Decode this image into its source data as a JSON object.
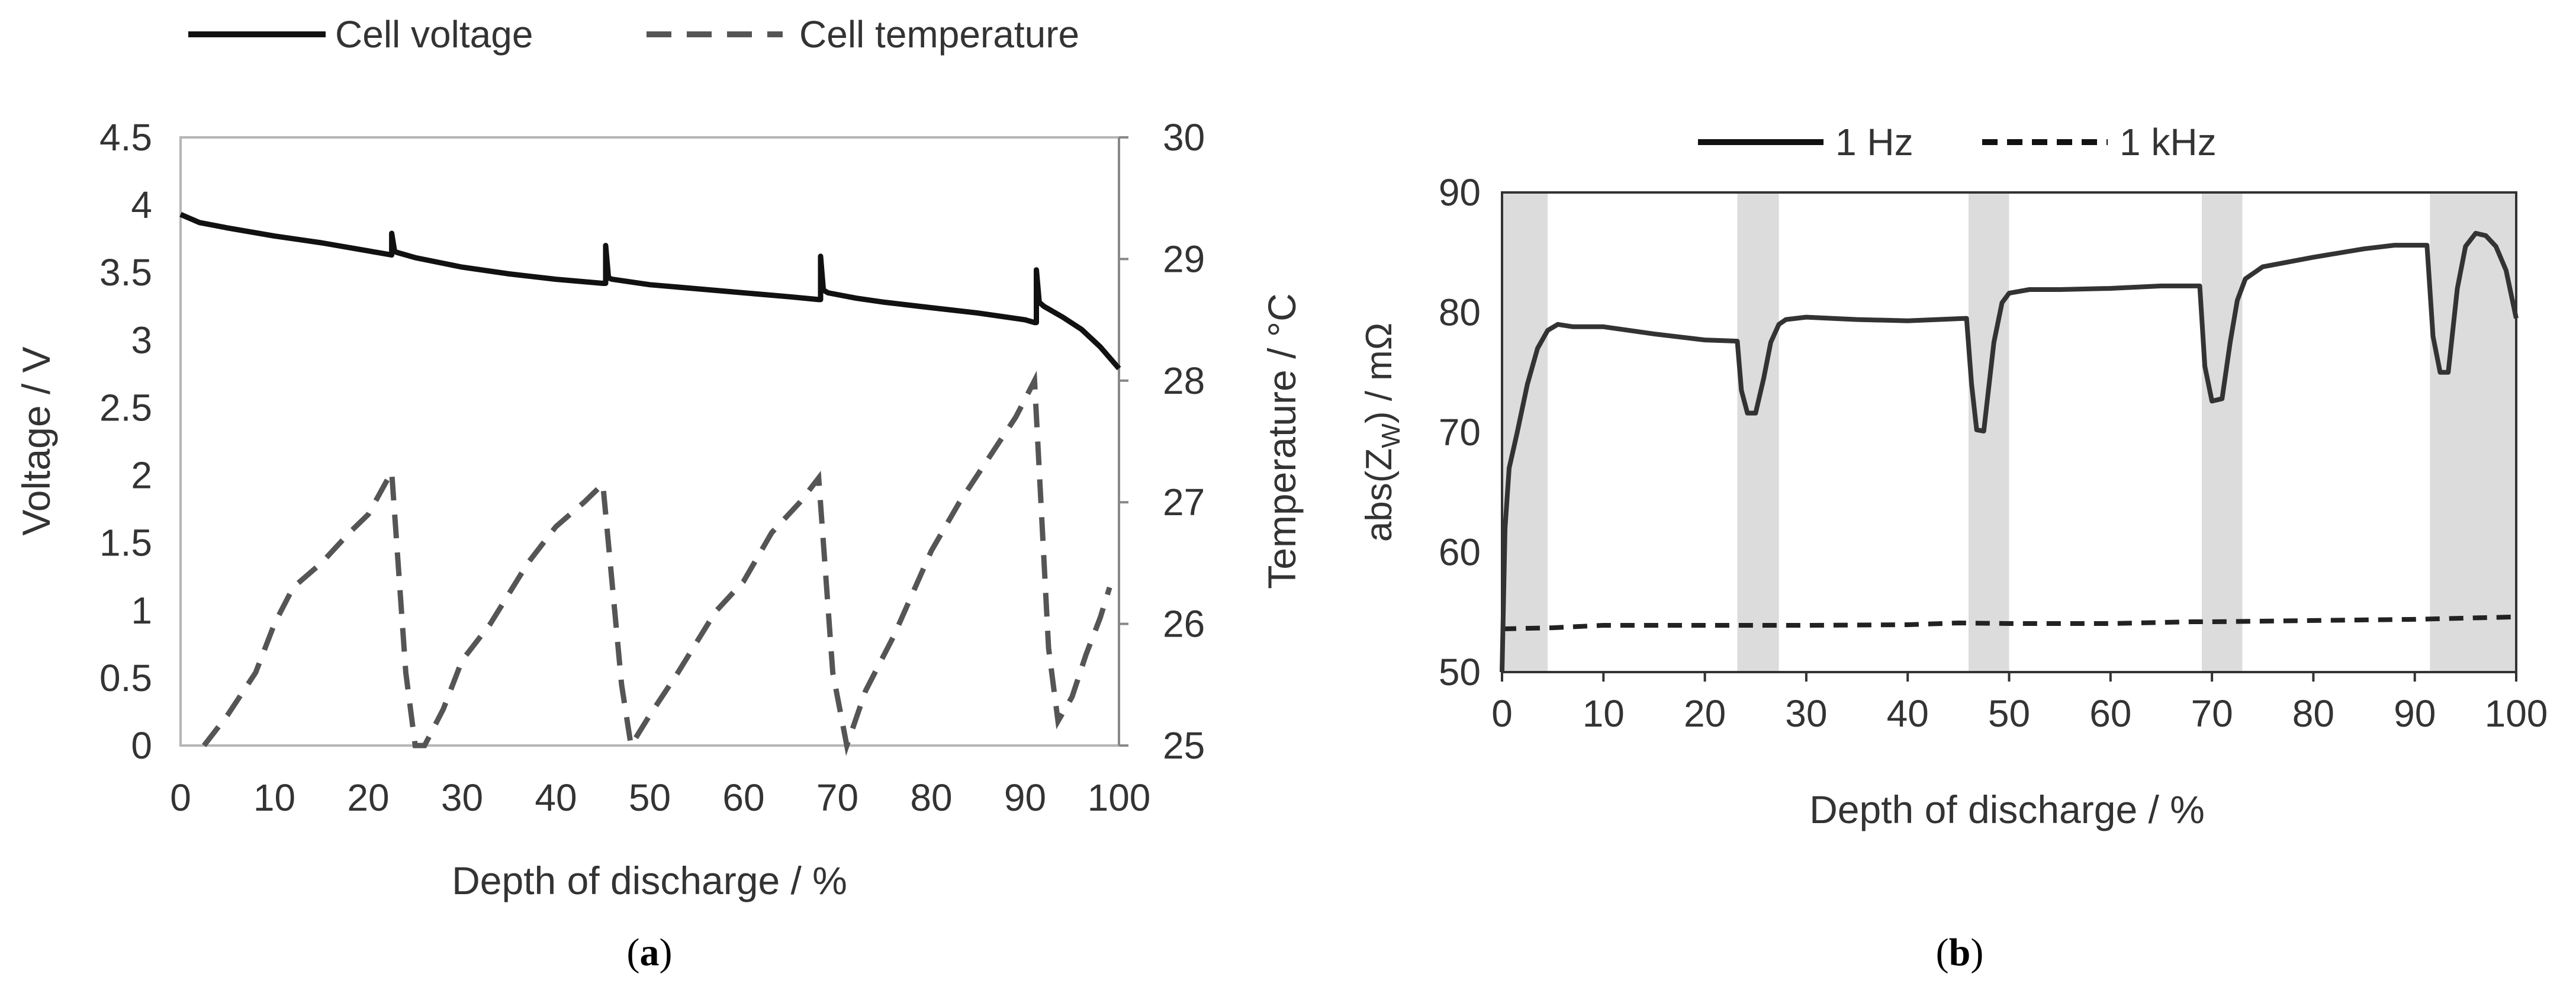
{
  "chart_data": [
    {
      "panel": "a",
      "panel_label": "a",
      "type": "line",
      "legend": [
        "Cell voltage",
        "Cell temperature"
      ],
      "legend_placement": "top",
      "xlabel": "Depth of discharge / %",
      "ylabel": "Voltage / V",
      "y2label": "Temperature / °C",
      "xlim": [
        0,
        100
      ],
      "ylim": [
        0,
        4.5
      ],
      "y2lim": [
        25,
        30
      ],
      "xticks": [
        "0",
        "10",
        "20",
        "30",
        "40",
        "50",
        "60",
        "70",
        "80",
        "90",
        "100"
      ],
      "yticks": [
        "0",
        "0.5",
        "1",
        "1.5",
        "2",
        "2.5",
        "3",
        "3.5",
        "4",
        "4.5"
      ],
      "y2ticks": [
        "25",
        "26",
        "27",
        "28",
        "29",
        "30"
      ],
      "series": [
        {
          "name": "Cell voltage",
          "axis": "left",
          "style": "solid",
          "x": [
            0,
            2,
            5,
            10,
            15,
            20,
            22.5,
            22.5,
            22.8,
            23,
            25,
            30,
            35,
            40,
            45,
            45.3,
            45.3,
            45.6,
            46,
            50,
            55,
            60,
            65,
            68,
            68.2,
            68.2,
            68.5,
            69,
            72,
            75,
            80,
            85,
            90,
            91,
            91.2,
            91.2,
            91.5,
            92,
            94,
            96,
            98,
            100
          ],
          "values": [
            3.93,
            3.87,
            3.83,
            3.77,
            3.72,
            3.66,
            3.63,
            3.79,
            3.66,
            3.65,
            3.61,
            3.54,
            3.49,
            3.45,
            3.42,
            3.42,
            3.7,
            3.46,
            3.45,
            3.41,
            3.38,
            3.35,
            3.32,
            3.3,
            3.3,
            3.62,
            3.37,
            3.35,
            3.31,
            3.28,
            3.24,
            3.2,
            3.15,
            3.13,
            3.13,
            3.52,
            3.28,
            3.25,
            3.17,
            3.08,
            2.95,
            2.79
          ]
        },
        {
          "name": "Cell temperature",
          "axis": "right",
          "style": "dashed",
          "x": [
            2.5,
            5,
            8,
            10,
            12,
            15,
            18,
            20,
            22.5,
            24,
            25,
            26,
            28,
            30,
            33,
            37,
            40,
            43,
            45,
            47,
            48,
            50,
            53,
            57,
            60,
            63,
            66,
            68,
            69.5,
            71,
            73,
            76,
            80,
            83,
            86,
            89,
            91,
            92.5,
            93.5,
            95,
            96.5,
            98,
            99
          ],
          "values": [
            25.0,
            25.25,
            25.6,
            26.0,
            26.3,
            26.5,
            26.75,
            26.9,
            27.25,
            25.6,
            25.0,
            25.0,
            25.3,
            25.7,
            26.0,
            26.5,
            26.8,
            27.0,
            27.15,
            25.5,
            25.0,
            25.25,
            25.6,
            26.1,
            26.35,
            26.75,
            27.0,
            27.2,
            25.6,
            25.0,
            25.45,
            25.9,
            26.6,
            27.0,
            27.35,
            27.7,
            28.0,
            25.8,
            25.2,
            25.4,
            25.75,
            26.05,
            26.3
          ]
        }
      ]
    },
    {
      "panel": "b",
      "panel_label": "b",
      "type": "line",
      "legend": [
        "1 Hz",
        "1 kHz"
      ],
      "legend_placement": "top",
      "xlabel": "Depth of discharge / %",
      "ylabel_prefix": "abs(Z",
      "ylabel_sub": "W",
      "ylabel_suffix": ") / mΩ",
      "xlim": [
        0,
        100
      ],
      "ylim": [
        50,
        90
      ],
      "xticks": [
        "0",
        "10",
        "20",
        "30",
        "40",
        "50",
        "60",
        "70",
        "80",
        "90",
        "100"
      ],
      "yticks": [
        "50",
        "60",
        "70",
        "80",
        "90"
      ],
      "shaded_x_ranges": [
        [
          0,
          4.5
        ],
        [
          23.2,
          27.3
        ],
        [
          46,
          50
        ],
        [
          69,
          73
        ],
        [
          91.5,
          100
        ]
      ],
      "series": [
        {
          "name": "1 Hz",
          "style": "solid",
          "x": [
            0,
            0.3,
            0.7,
            1.5,
            2.5,
            3.5,
            4.5,
            5.5,
            7,
            10,
            15,
            20,
            23.2,
            23.6,
            24.2,
            25,
            25.8,
            26.5,
            27.3,
            28,
            30,
            35,
            40,
            45.8,
            46.3,
            46.8,
            47.5,
            48.5,
            49.3,
            50,
            52,
            55,
            60,
            65,
            68.8,
            69.3,
            70,
            71,
            71.8,
            72.5,
            73.3,
            75,
            80,
            85,
            88,
            91.2,
            91.8,
            92.5,
            93.3,
            94.2,
            95,
            96,
            97,
            98,
            99,
            100
          ],
          "values": [
            50,
            62,
            67,
            70,
            74,
            77,
            78.5,
            79,
            78.8,
            78.8,
            78.2,
            77.7,
            77.6,
            73.5,
            71.6,
            71.6,
            74.5,
            77.5,
            79,
            79.4,
            79.6,
            79.4,
            79.3,
            79.5,
            74,
            70.2,
            70.1,
            77.5,
            80.8,
            81.6,
            81.9,
            81.9,
            82.0,
            82.2,
            82.2,
            75.5,
            72.6,
            72.8,
            77.5,
            81,
            82.8,
            83.8,
            84.6,
            85.3,
            85.6,
            85.6,
            78,
            75,
            75,
            82,
            85.5,
            86.6,
            86.4,
            85.5,
            83.5,
            79.5
          ]
        },
        {
          "name": "1 kHz",
          "style": "dashed",
          "x": [
            0,
            5,
            10,
            20,
            30,
            40,
            45,
            50,
            60,
            68,
            70,
            80,
            90,
            100
          ],
          "values": [
            53.6,
            53.7,
            53.9,
            53.9,
            53.9,
            53.95,
            54.1,
            54.05,
            54.05,
            54.2,
            54.2,
            54.3,
            54.4,
            54.6
          ]
        }
      ]
    }
  ]
}
